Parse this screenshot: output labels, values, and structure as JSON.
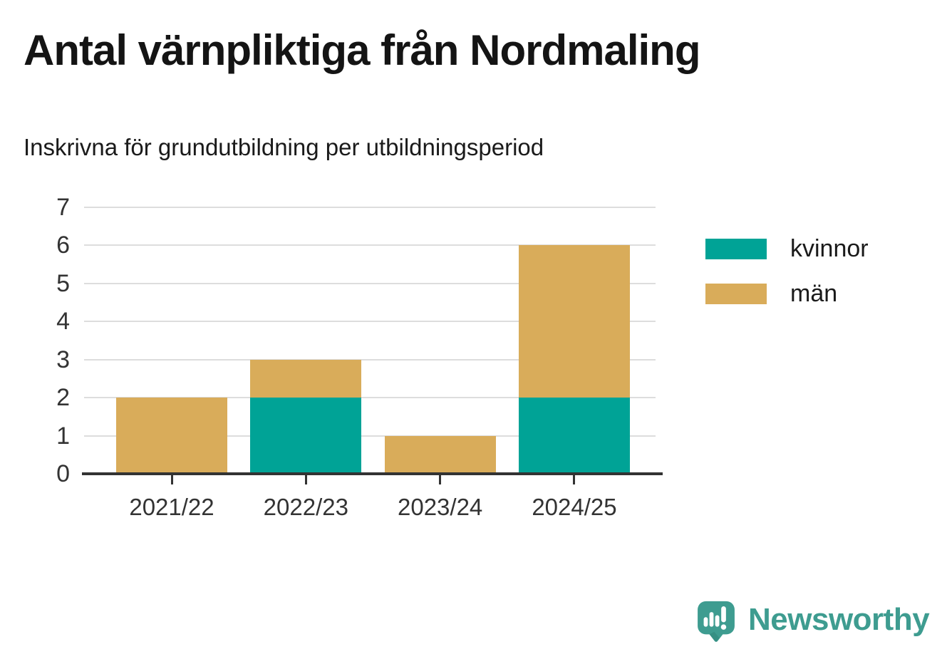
{
  "header": {
    "title": "Antal värnpliktiga från Nordmaling",
    "subtitle": "Inskrivna för grundutbildning per utbildningsperiod"
  },
  "chart_data": {
    "type": "bar",
    "stacked": true,
    "title": "Antal värnpliktiga från Nordmaling",
    "subtitle": "Inskrivna för grundutbildning per utbildningsperiod",
    "categories": [
      "2021/22",
      "2022/23",
      "2023/24",
      "2024/25"
    ],
    "series": [
      {
        "name": "kvinnor",
        "color": "#00a396",
        "values": [
          0,
          2,
          0,
          2
        ]
      },
      {
        "name": "män",
        "color": "#d9ac5a",
        "values": [
          2,
          1,
          1,
          4
        ]
      }
    ],
    "totals": [
      2,
      3,
      1,
      6
    ],
    "xlabel": "",
    "ylabel": "",
    "ylim": [
      0,
      7
    ],
    "yticks": [
      0,
      1,
      2,
      3,
      4,
      5,
      6,
      7
    ],
    "grid": true,
    "gridline_color": "#dddddd",
    "axis_color": "#333333",
    "tick_label_color": "#333333",
    "legend_position": "right"
  },
  "footer": {
    "brand": "Newsworthy",
    "brand_color": "#3e9c90"
  }
}
